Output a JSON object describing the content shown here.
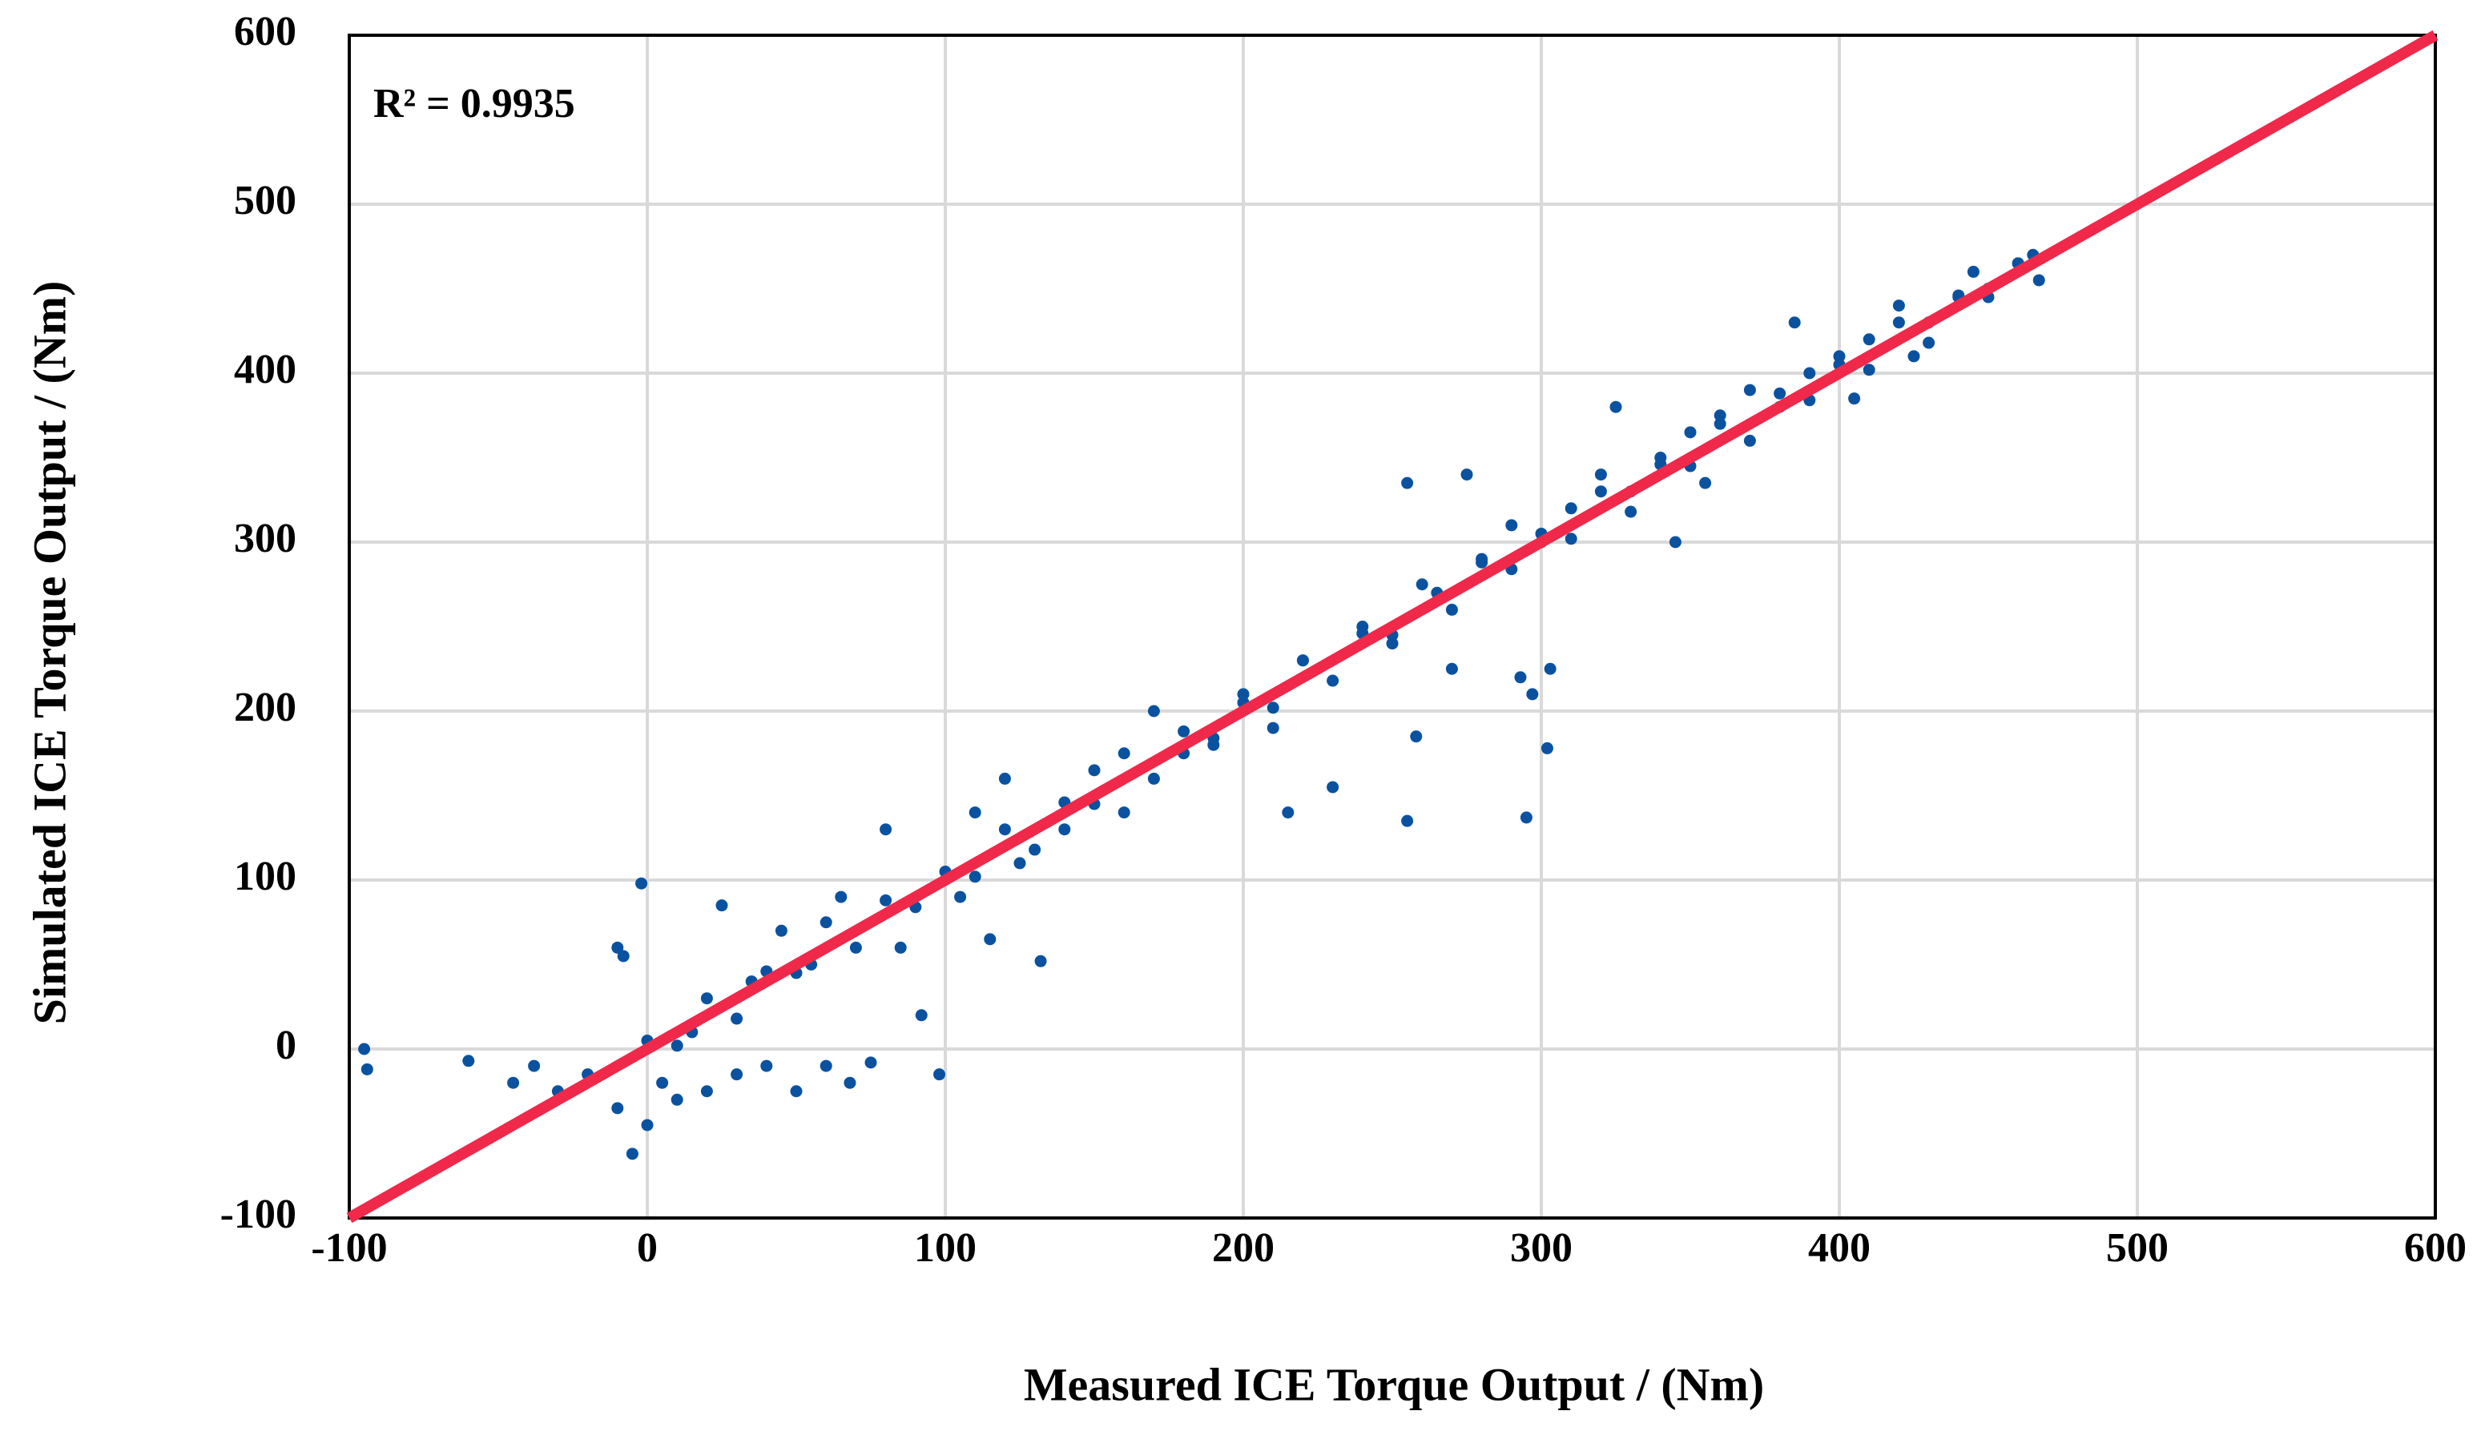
{
  "chart_data": {
    "type": "scatter",
    "xlabel": "Measured ICE Torque Output / (Nm)",
    "ylabel": "Simulated ICE Torque Output / (Nm)",
    "annotation": "R² = 0.9935",
    "xlim": [
      -100,
      600
    ],
    "ylim": [
      -100,
      600
    ],
    "xticks": [
      -100,
      0,
      100,
      200,
      300,
      400,
      500,
      600
    ],
    "yticks": [
      -100,
      0,
      100,
      200,
      300,
      400,
      500,
      600
    ],
    "grid": true,
    "series": [
      {
        "color": "#0a52a0",
        "x": [
          -95,
          -94,
          -60,
          -45,
          -38,
          -30,
          -20,
          -10,
          -5,
          -2,
          -10,
          -8,
          0,
          5,
          10,
          15,
          20,
          25,
          30,
          35,
          40,
          45,
          50,
          55,
          60,
          65,
          68,
          75,
          80,
          85,
          92,
          98,
          105,
          110,
          115,
          120,
          125,
          132,
          140,
          150,
          160,
          170,
          180,
          190,
          200,
          210,
          215,
          220,
          230,
          240,
          250,
          255,
          255,
          258,
          265,
          270,
          275,
          280,
          290,
          293,
          295,
          297,
          300,
          302,
          303,
          310,
          320,
          325,
          330,
          340,
          345,
          350,
          355,
          360,
          370,
          380,
          385,
          390,
          400,
          405,
          410,
          420,
          425,
          430,
          440,
          445,
          450,
          460,
          465,
          467,
          0,
          10,
          20,
          30,
          40,
          50,
          60,
          70,
          80,
          90,
          100,
          110,
          120,
          130,
          140,
          150,
          160,
          170,
          180,
          190,
          200,
          210,
          220,
          230,
          240,
          250,
          260,
          270,
          280,
          290,
          300,
          310,
          320,
          330,
          340,
          350,
          360,
          370,
          380,
          390,
          400,
          410,
          420,
          430,
          440,
          450,
          460
        ],
        "y": [
          0,
          -12,
          -7,
          -20,
          -10,
          -25,
          -15,
          -35,
          -62,
          98,
          60,
          55,
          -45,
          -20,
          -30,
          10,
          -25,
          85,
          -15,
          40,
          -10,
          70,
          -25,
          50,
          -10,
          90,
          -20,
          -8,
          130,
          60,
          20,
          -15,
          90,
          140,
          65,
          160,
          110,
          52,
          130,
          165,
          140,
          200,
          175,
          180,
          210,
          190,
          140,
          230,
          155,
          250,
          240,
          335,
          135,
          185,
          270,
          225,
          340,
          290,
          310,
          220,
          137,
          210,
          300,
          178,
          225,
          320,
          340,
          380,
          330,
          350,
          300,
          365,
          335,
          370,
          390,
          380,
          430,
          400,
          410,
          385,
          420,
          440,
          410,
          430,
          445,
          460,
          450,
          465,
          470,
          455,
          5,
          2,
          30,
          18,
          46,
          45,
          75,
          60,
          88,
          84,
          105,
          102,
          130,
          118,
          146,
          145,
          175,
          160,
          188,
          184,
          205,
          202,
          230,
          218,
          246,
          245,
          275,
          260,
          288,
          284,
          305,
          302,
          330,
          318,
          346,
          345,
          375,
          360,
          388,
          384,
          405,
          402,
          430,
          418,
          446,
          445,
          465
        ]
      }
    ],
    "fit_line": {
      "color": "#f0284a",
      "x": [
        -100,
        600
      ],
      "y": [
        -100,
        600
      ]
    }
  }
}
